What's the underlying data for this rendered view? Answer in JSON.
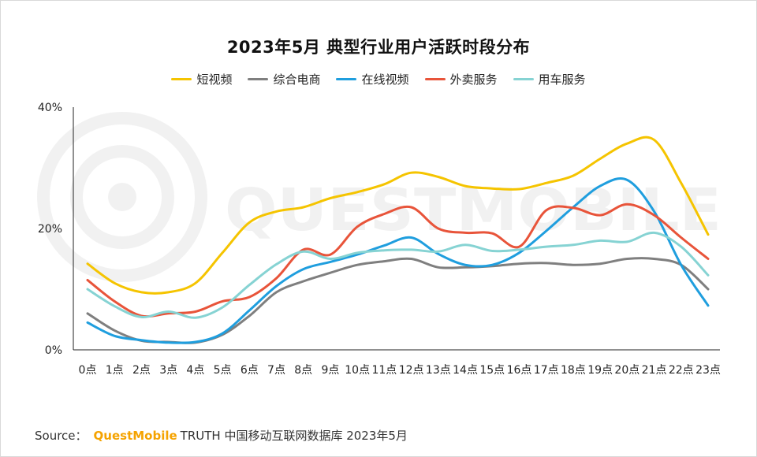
{
  "chart_data": {
    "type": "line",
    "title": "2023年5月 典型行业用户活跃时段分布",
    "categories": [
      "0点",
      "1点",
      "2点",
      "3点",
      "4点",
      "5点",
      "6点",
      "7点",
      "8点",
      "9点",
      "10点",
      "11点",
      "12点",
      "13点",
      "14点",
      "15点",
      "16点",
      "17点",
      "18点",
      "19点",
      "20点",
      "21点",
      "22点",
      "23点"
    ],
    "y_ticks": [
      "0%",
      "20%",
      "40%"
    ],
    "ylim": [
      0,
      40
    ],
    "y_unit": "%",
    "grid": false,
    "legend_position": "top",
    "series": [
      {
        "name": "短视频",
        "color": "#f5c400",
        "values": [
          14.2,
          11,
          9.5,
          9.5,
          11,
          16,
          21,
          22.8,
          23.5,
          25,
          26,
          27.3,
          29.2,
          28.5,
          27,
          26.6,
          26.5,
          27.5,
          28.7,
          31.5,
          34,
          34.6,
          27.5,
          19
        ]
      },
      {
        "name": "综合电商",
        "color": "#7f7f7f",
        "values": [
          6,
          3.2,
          1.5,
          1.3,
          1.2,
          2.5,
          5.6,
          9.5,
          11.3,
          12.7,
          14,
          14.6,
          15,
          13.6,
          13.6,
          13.8,
          14.2,
          14.3,
          14,
          14.2,
          15,
          15,
          14,
          10
        ]
      },
      {
        "name": "在线视频",
        "color": "#1f9ede",
        "values": [
          4.5,
          2.3,
          1.6,
          1.2,
          1.3,
          2.7,
          6.5,
          10.5,
          13.3,
          14.5,
          15.7,
          17.2,
          18.5,
          15.8,
          14,
          14,
          16,
          19.6,
          23.5,
          27,
          28,
          22.8,
          14,
          7.3
        ]
      },
      {
        "name": "外卖服务",
        "color": "#e8543a",
        "values": [
          11.5,
          8,
          5.6,
          6,
          6.3,
          8,
          8.7,
          11.8,
          16.5,
          15.7,
          20.3,
          22.4,
          23.5,
          20,
          19.3,
          19.2,
          17,
          23,
          23.4,
          22.2,
          24,
          22.2,
          18.5,
          15
        ]
      },
      {
        "name": "用车服务",
        "color": "#86d3d3",
        "values": [
          10,
          7.2,
          5.4,
          6.3,
          5.3,
          7,
          10.7,
          14.1,
          16.2,
          15,
          16,
          16.4,
          16.5,
          16.2,
          17.3,
          16.3,
          16.5,
          17,
          17.3,
          18,
          17.8,
          19.3,
          17,
          12.3
        ]
      }
    ]
  },
  "source": {
    "label": "Source：",
    "brand": "QuestMobile",
    "rest": "TRUTH 中国移动互联网数据库 2023年5月"
  },
  "watermark": {
    "text": "QUESTMOBILE"
  }
}
